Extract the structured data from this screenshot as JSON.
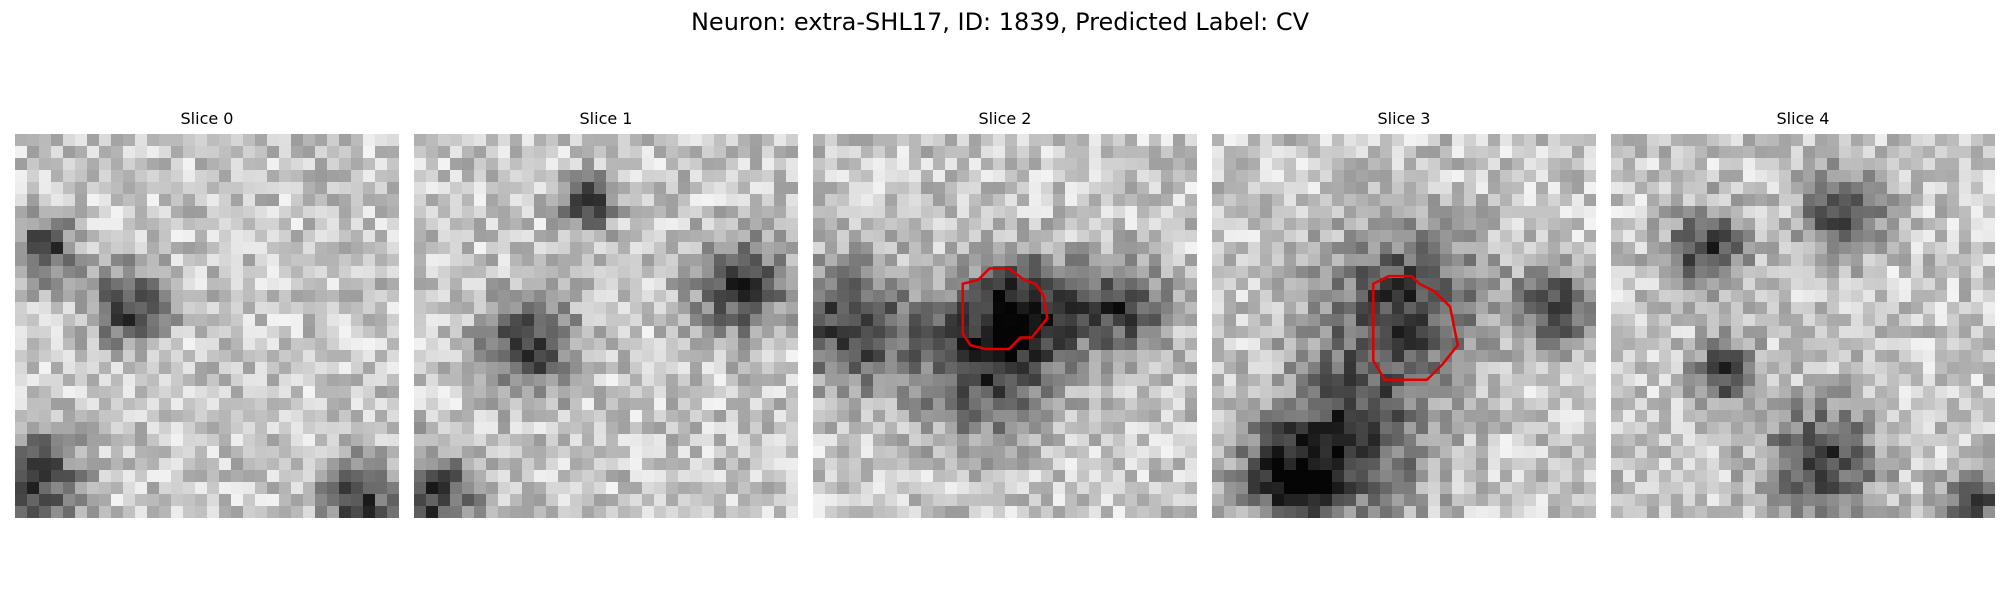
{
  "figure": {
    "title": "Neuron: extra-SHL17, ID: 1839, Predicted Label: CV",
    "outline_color": "#e00000"
  },
  "slices": [
    {
      "label": "Slice 0",
      "seed": 11,
      "has_outline": false,
      "dark_regions": [
        [
          0.05,
          0.9,
          0.12
        ],
        [
          0.3,
          0.45,
          0.1
        ],
        [
          0.9,
          0.95,
          0.1
        ],
        [
          0.08,
          0.3,
          0.08
        ]
      ]
    },
    {
      "label": "Slice 1",
      "seed": 23,
      "has_outline": false,
      "dark_regions": [
        [
          0.05,
          0.95,
          0.12
        ],
        [
          0.85,
          0.4,
          0.12
        ],
        [
          0.45,
          0.18,
          0.07
        ],
        [
          0.3,
          0.55,
          0.12
        ]
      ]
    },
    {
      "label": "Slice 2",
      "seed": 37,
      "has_outline": true,
      "dark_regions": [
        [
          0.1,
          0.5,
          0.16
        ],
        [
          0.45,
          0.6,
          0.18
        ],
        [
          0.8,
          0.45,
          0.12
        ],
        [
          0.55,
          0.45,
          0.14
        ]
      ]
    },
    {
      "label": "Slice 3",
      "seed": 41,
      "has_outline": true,
      "dark_regions": [
        [
          0.35,
          0.8,
          0.2
        ],
        [
          0.5,
          0.45,
          0.2
        ],
        [
          0.9,
          0.45,
          0.1
        ],
        [
          0.2,
          0.9,
          0.12
        ]
      ]
    },
    {
      "label": "Slice 4",
      "seed": 53,
      "has_outline": false,
      "dark_regions": [
        [
          0.6,
          0.2,
          0.1
        ],
        [
          0.25,
          0.3,
          0.1
        ],
        [
          0.55,
          0.85,
          0.14
        ],
        [
          0.95,
          0.95,
          0.08
        ],
        [
          0.3,
          0.62,
          0.08
        ]
      ]
    }
  ]
}
